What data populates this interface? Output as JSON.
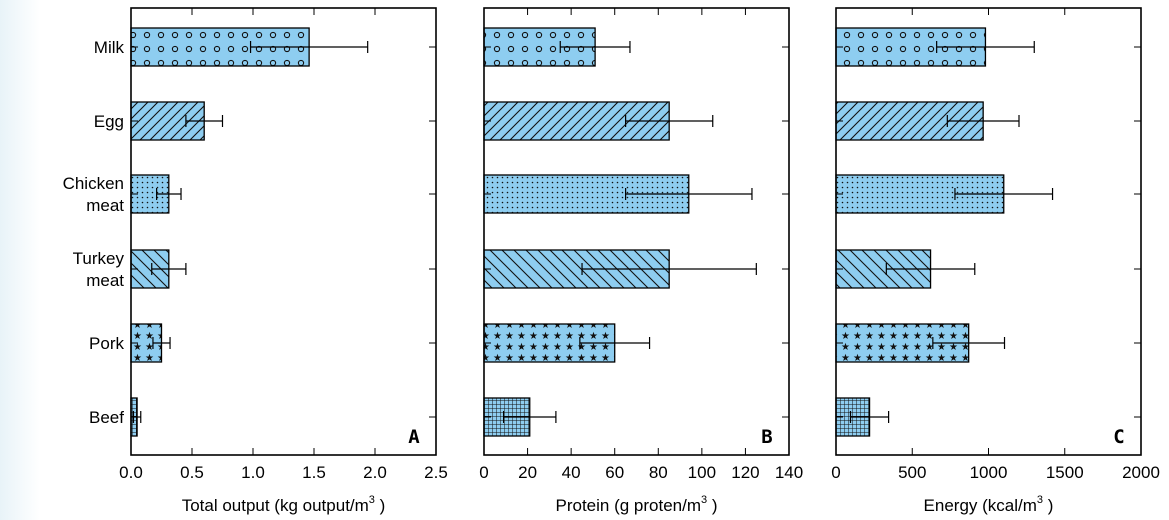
{
  "chart_data": [
    {
      "type": "bar",
      "orientation": "horizontal",
      "panel_label": "A",
      "categories": [
        "Milk",
        "Egg",
        "Chicken\nmeat",
        "Turkey\nmeat",
        "Pork",
        "Beef"
      ],
      "values": [
        1.46,
        0.6,
        0.31,
        0.31,
        0.25,
        0.05
      ],
      "errors": [
        0.48,
        0.15,
        0.1,
        0.14,
        0.07,
        0.03
      ],
      "xlabel": "Total output (kg output/m",
      "xlabel_sup": "3",
      "xlabel_end": " )",
      "xlim": [
        0,
        2.5
      ],
      "xticks": [
        "0.0",
        "0.5",
        "1.0",
        "1.5",
        "2.0",
        "2.5"
      ],
      "tickvals": [
        0,
        0.5,
        1.0,
        1.5,
        2.0,
        2.5
      ],
      "grid": false
    },
    {
      "type": "bar",
      "orientation": "horizontal",
      "panel_label": "B",
      "categories": [
        "Milk",
        "Egg",
        "Chicken\nmeat",
        "Turkey\nmeat",
        "Pork",
        "Beef"
      ],
      "values": [
        51,
        85,
        94,
        85,
        60,
        21
      ],
      "errors": [
        16,
        20,
        29,
        40,
        16,
        12
      ],
      "xlabel": "Protein (g proten/m",
      "xlabel_sup": "3",
      "xlabel_end": " )",
      "xlim": [
        0,
        140
      ],
      "xticks": [
        "0",
        "20",
        "40",
        "60",
        "80",
        "100",
        "120",
        "140"
      ],
      "tickvals": [
        0,
        20,
        40,
        60,
        80,
        100,
        120,
        140
      ],
      "grid": false
    },
    {
      "type": "bar",
      "orientation": "horizontal",
      "panel_label": "C",
      "categories": [
        "Milk",
        "Egg",
        "Chicken\nmeat",
        "Turkey\nmeat",
        "Pork",
        "Beef"
      ],
      "values": [
        980,
        965,
        1100,
        620,
        870,
        220
      ],
      "errors": [
        320,
        235,
        320,
        290,
        235,
        125
      ],
      "xlabel": "Energy (kcal/m",
      "xlabel_sup": "3",
      "xlabel_end": " )",
      "xlim": [
        0,
        2000
      ],
      "xticks": [
        "0",
        "500",
        "1000",
        "1500",
        "2000"
      ],
      "tickvals": [
        0,
        500,
        1000,
        1500,
        2000
      ],
      "grid": false
    }
  ],
  "colors": {
    "bar_fill": "#8ecdf0",
    "bar_edge": "#000000",
    "pattern_ink": "#111111"
  },
  "patterns": [
    "circles",
    "diagonal-forward",
    "dots",
    "diagonal-back",
    "stars",
    "grid"
  ]
}
